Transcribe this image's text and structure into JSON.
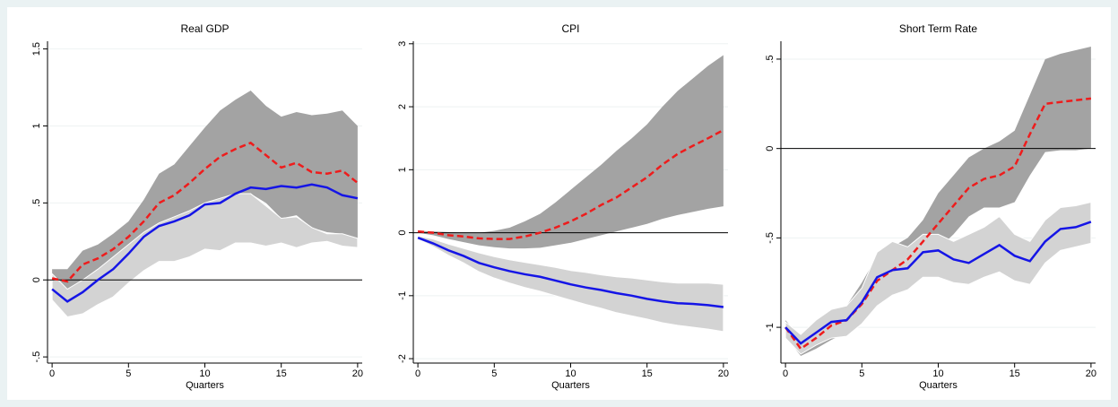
{
  "chart_data": [
    {
      "type": "line",
      "title": "Real GDP",
      "xlabel": "Quarters",
      "x": [
        0,
        1,
        2,
        3,
        4,
        5,
        6,
        7,
        8,
        9,
        10,
        11,
        12,
        13,
        14,
        15,
        16,
        17,
        18,
        19,
        20
      ],
      "xlim": [
        -0.3,
        20.3
      ],
      "xticks": [
        0,
        5,
        10,
        15,
        20
      ],
      "ylim": [
        -0.54,
        1.55
      ],
      "yticks": [
        {
          "value": -0.5,
          "label": "-.5"
        },
        0,
        {
          "value": 0.5,
          "label": ".5"
        },
        1,
        1.5
      ],
      "grid": true,
      "hline": 0,
      "bands": [
        {
          "color": "#a3a3a3",
          "upper": [
            0.07,
            0.07,
            0.19,
            0.23,
            0.3,
            0.38,
            0.52,
            0.69,
            0.75,
            0.87,
            0.99,
            1.1,
            1.17,
            1.23,
            1.13,
            1.06,
            1.09,
            1.07,
            1.08,
            1.1,
            1.0
          ],
          "lower": [
            -0.06,
            -0.08,
            0.0,
            0.05,
            0.1,
            0.18,
            0.26,
            0.33,
            0.38,
            0.42,
            0.48,
            0.52,
            0.54,
            0.56,
            0.5,
            0.4,
            0.42,
            0.34,
            0.31,
            0.3,
            0.27
          ]
        },
        {
          "color": "#d3d3d3",
          "upper": [
            0.04,
            -0.06,
            0.0,
            0.07,
            0.15,
            0.23,
            0.31,
            0.37,
            0.41,
            0.45,
            0.5,
            0.53,
            0.56,
            0.56,
            0.48,
            0.4,
            0.41,
            0.34,
            0.3,
            0.3,
            0.27
          ],
          "lower": [
            -0.13,
            -0.24,
            -0.22,
            -0.16,
            -0.11,
            -0.02,
            0.06,
            0.12,
            0.12,
            0.15,
            0.2,
            0.19,
            0.24,
            0.24,
            0.22,
            0.24,
            0.21,
            0.24,
            0.25,
            0.22,
            0.21
          ]
        }
      ],
      "lines": [
        {
          "color": "#ee1c1c",
          "dash": true,
          "values": [
            0.01,
            -0.01,
            0.1,
            0.14,
            0.2,
            0.28,
            0.38,
            0.5,
            0.55,
            0.63,
            0.72,
            0.8,
            0.85,
            0.89,
            0.81,
            0.73,
            0.76,
            0.7,
            0.69,
            0.71,
            0.63
          ]
        },
        {
          "color": "#1515e6",
          "dash": false,
          "values": [
            -0.06,
            -0.14,
            -0.08,
            0.0,
            0.07,
            0.17,
            0.28,
            0.35,
            0.38,
            0.42,
            0.49,
            0.5,
            0.56,
            0.6,
            0.59,
            0.61,
            0.6,
            0.62,
            0.6,
            0.55,
            0.53
          ]
        }
      ]
    },
    {
      "type": "line",
      "title": "CPI",
      "xlabel": "Quarters",
      "x": [
        0,
        1,
        2,
        3,
        4,
        5,
        6,
        7,
        8,
        9,
        10,
        11,
        12,
        13,
        14,
        15,
        16,
        17,
        18,
        19,
        20
      ],
      "xlim": [
        -0.3,
        20.3
      ],
      "xticks": [
        0,
        5,
        10,
        15,
        20
      ],
      "ylim": [
        -2.07,
        3.04
      ],
      "yticks": [
        -2,
        -1,
        0,
        1,
        2,
        3
      ],
      "grid": true,
      "hline": 0,
      "bands": [
        {
          "color": "#a3a3a3",
          "upper": [
            0.03,
            0.02,
            0.01,
            0.0,
            0.0,
            0.03,
            0.08,
            0.18,
            0.3,
            0.48,
            0.68,
            0.88,
            1.08,
            1.3,
            1.5,
            1.72,
            2.0,
            2.25,
            2.45,
            2.65,
            2.82
          ],
          "lower": [
            0.0,
            -0.04,
            -0.1,
            -0.15,
            -0.2,
            -0.23,
            -0.25,
            -0.25,
            -0.24,
            -0.2,
            -0.16,
            -0.1,
            -0.04,
            0.02,
            0.08,
            0.14,
            0.22,
            0.28,
            0.33,
            0.38,
            0.42
          ]
        },
        {
          "color": "#d3d3d3",
          "upper": [
            -0.05,
            -0.1,
            -0.18,
            -0.25,
            -0.32,
            -0.38,
            -0.43,
            -0.47,
            -0.51,
            -0.55,
            -0.6,
            -0.63,
            -0.67,
            -0.7,
            -0.72,
            -0.75,
            -0.78,
            -0.8,
            -0.8,
            -0.8,
            -0.82
          ],
          "lower": [
            -0.1,
            -0.22,
            -0.36,
            -0.48,
            -0.62,
            -0.72,
            -0.8,
            -0.87,
            -0.93,
            -1.0,
            -1.07,
            -1.14,
            -1.2,
            -1.27,
            -1.32,
            -1.37,
            -1.43,
            -1.47,
            -1.5,
            -1.53,
            -1.57
          ]
        }
      ],
      "lines": [
        {
          "color": "#ee1c1c",
          "dash": true,
          "values": [
            0.02,
            0.0,
            -0.04,
            -0.06,
            -0.09,
            -0.1,
            -0.1,
            -0.06,
            0.0,
            0.08,
            0.18,
            0.3,
            0.44,
            0.56,
            0.72,
            0.88,
            1.08,
            1.25,
            1.38,
            1.5,
            1.63
          ]
        },
        {
          "color": "#1515e6",
          "dash": false,
          "values": [
            -0.08,
            -0.17,
            -0.28,
            -0.37,
            -0.48,
            -0.55,
            -0.61,
            -0.66,
            -0.7,
            -0.76,
            -0.82,
            -0.87,
            -0.91,
            -0.96,
            -1.0,
            -1.05,
            -1.09,
            -1.12,
            -1.13,
            -1.15,
            -1.18
          ]
        }
      ]
    },
    {
      "type": "line",
      "title": "Short Term Rate",
      "xlabel": "Quarters",
      "x": [
        0,
        1,
        2,
        3,
        4,
        5,
        6,
        7,
        8,
        9,
        10,
        11,
        12,
        13,
        14,
        15,
        16,
        17,
        18,
        19,
        20
      ],
      "xlim": [
        -0.3,
        20.3
      ],
      "xticks": [
        0,
        5,
        10,
        15,
        20
      ],
      "ylim": [
        -1.2,
        0.6
      ],
      "yticks": [
        -1,
        {
          "value": -0.5,
          "label": "-.5"
        },
        0,
        {
          "value": 0.5,
          "label": ".5"
        }
      ],
      "grid": true,
      "hline": 0,
      "bands": [
        {
          "color": "#a3a3a3",
          "upper": [
            -0.96,
            -1.06,
            -0.98,
            -0.9,
            -0.88,
            -0.75,
            -0.6,
            -0.55,
            -0.5,
            -0.4,
            -0.25,
            -0.15,
            -0.05,
            0.0,
            0.04,
            0.1,
            0.3,
            0.5,
            0.53,
            0.55,
            0.57
          ],
          "lower": [
            -1.05,
            -1.16,
            -1.12,
            -1.07,
            -1.03,
            -0.97,
            -0.88,
            -0.8,
            -0.73,
            -0.63,
            -0.56,
            -0.48,
            -0.38,
            -0.33,
            -0.33,
            -0.3,
            -0.15,
            -0.02,
            -0.01,
            -0.01,
            0.0
          ]
        },
        {
          "color": "#d3d3d3",
          "upper": [
            -0.97,
            -1.04,
            -0.96,
            -0.9,
            -0.88,
            -0.78,
            -0.58,
            -0.52,
            -0.55,
            -0.48,
            -0.48,
            -0.52,
            -0.48,
            -0.44,
            -0.38,
            -0.48,
            -0.52,
            -0.4,
            -0.33,
            -0.32,
            -0.3
          ],
          "lower": [
            -1.06,
            -1.15,
            -1.1,
            -1.06,
            -1.05,
            -0.98,
            -0.88,
            -0.82,
            -0.79,
            -0.72,
            -0.72,
            -0.75,
            -0.76,
            -0.72,
            -0.69,
            -0.74,
            -0.76,
            -0.64,
            -0.57,
            -0.55,
            -0.53
          ]
        }
      ],
      "lines": [
        {
          "color": "#ee1c1c",
          "dash": true,
          "values": [
            -1.0,
            -1.12,
            -1.06,
            -0.99,
            -0.96,
            -0.87,
            -0.74,
            -0.68,
            -0.62,
            -0.52,
            -0.42,
            -0.32,
            -0.22,
            -0.17,
            -0.15,
            -0.1,
            0.08,
            0.25,
            0.26,
            0.27,
            0.28
          ]
        },
        {
          "color": "#1515e6",
          "dash": false,
          "values": [
            -1.0,
            -1.09,
            -1.03,
            -0.97,
            -0.96,
            -0.86,
            -0.72,
            -0.68,
            -0.67,
            -0.58,
            -0.57,
            -0.62,
            -0.64,
            -0.59,
            -0.54,
            -0.6,
            -0.63,
            -0.52,
            -0.45,
            -0.44,
            -0.41
          ]
        }
      ]
    }
  ]
}
